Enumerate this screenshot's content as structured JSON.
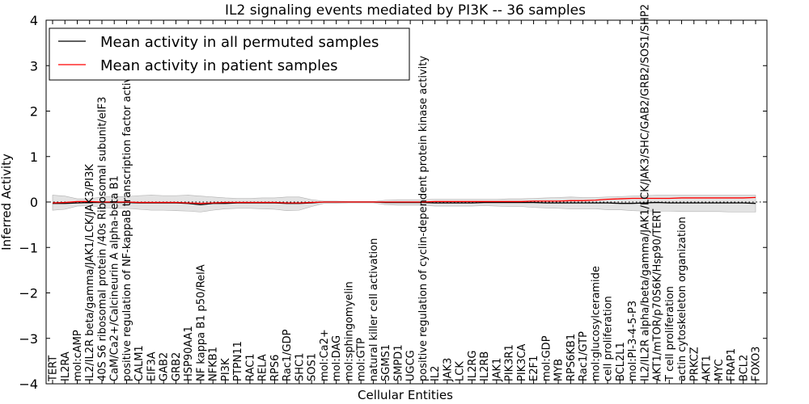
{
  "chart_data": {
    "type": "line",
    "title": "IL2 signaling events mediated by PI3K -- 36 samples",
    "xlabel": "Cellular Entities",
    "ylabel": "Inferred Activity",
    "ylim": [
      -4,
      4
    ],
    "yticks": [
      4,
      3,
      2,
      1,
      0,
      -1,
      -2,
      -3,
      -4
    ],
    "ytick_labels": [
      "4",
      "3",
      "2",
      "1",
      "0",
      "−1",
      "−2",
      "−3",
      "−4"
    ],
    "grid": false,
    "legend_position": "top-left",
    "categories": [
      "TERT",
      "IL2RA",
      "mol:cAMP",
      "IL2/IL2R beta/gamma/JAK1/LCK/JAK3/PI3K",
      "40S S6 ribosomal protein /40s Ribosomal subunit/eIF3",
      "CaM/Ca2+/Calcineurin A alpha-beta B1",
      "positive regulation of NF-kappaB transcription factor activity",
      "CALM1",
      "EIF3A",
      "GAB2",
      "GRB2",
      "HSP90AA1",
      "NF kappa B1 p50/RelA",
      "NFKB1",
      "PI3K",
      "PTPN11",
      "RAC1",
      "RELA",
      "RPS6",
      "Rac1/GDP",
      "SHC1",
      "SOS1",
      "mol:Ca2+",
      "mol:DAG",
      "mol:sphingomyelin",
      "mol:GTP",
      "natural killer cell activation",
      "SGMS1",
      "SMPD1",
      "UGCG",
      "positive regulation of cyclin-dependent protein kinase activity",
      "IL2",
      "JAK3",
      "LCK",
      "IL2RG",
      "IL2RB",
      "JAK1",
      "PIK3R1",
      "PIK3CA",
      "E2F1",
      "mol:GDP",
      "MYB",
      "RPS6KB1",
      "Rac1/GTP",
      "mol:glucosylceramide",
      "cell proliferation",
      "BCL2L1",
      "mol:PI-3-4-5-P3",
      "IL2/IL2R alpha/beta/gamma/JAK1/LCK/JAK3/SHC/GAB2/GRB2/SOS1/SHP2",
      "AKT1/mTOR/p70S6K/Hsp90/TERT",
      "T cell proliferation",
      "actin cytoskeleton organization",
      "PRKCZ",
      "AKT1",
      "MYC",
      "FRAP1",
      "BCL2",
      "FOXO3"
    ],
    "series": [
      {
        "name": "Mean activity in all permuted samples",
        "color": "#000000",
        "values": [
          -0.03,
          -0.03,
          -0.02,
          -0.01,
          -0.01,
          -0.01,
          -0.01,
          -0.02,
          -0.02,
          -0.02,
          -0.02,
          -0.03,
          -0.06,
          -0.03,
          -0.03,
          -0.02,
          -0.02,
          -0.02,
          -0.02,
          -0.03,
          -0.03,
          -0.02,
          0.0,
          0.0,
          0.0,
          0.0,
          0.0,
          -0.01,
          -0.01,
          -0.01,
          -0.01,
          -0.02,
          -0.02,
          -0.02,
          -0.02,
          -0.01,
          -0.01,
          -0.01,
          -0.01,
          -0.01,
          -0.02,
          -0.02,
          -0.02,
          -0.02,
          -0.02,
          -0.02,
          -0.03,
          -0.03,
          -0.02,
          -0.01,
          -0.02,
          -0.02,
          -0.02,
          -0.02,
          -0.02,
          -0.02,
          -0.02,
          -0.03
        ],
        "spread_upper": [
          0.15,
          0.13,
          0.07,
          0.07,
          0.11,
          0.12,
          0.12,
          0.14,
          0.15,
          0.14,
          0.14,
          0.15,
          0.13,
          0.11,
          0.09,
          0.08,
          0.08,
          0.09,
          0.09,
          0.11,
          0.11,
          0.05,
          0.02,
          0.02,
          0.01,
          0.01,
          0.01,
          0.04,
          0.05,
          0.05,
          0.05,
          0.06,
          0.06,
          0.06,
          0.06,
          0.06,
          0.06,
          0.07,
          0.07,
          0.08,
          0.09,
          0.1,
          0.11,
          0.1,
          0.1,
          0.11,
          0.12,
          0.13,
          0.14,
          0.15,
          0.15,
          0.15,
          0.15,
          0.15,
          0.15,
          0.15,
          0.15,
          0.15
        ],
        "spread_lower": [
          -0.18,
          -0.16,
          -0.09,
          -0.08,
          -0.12,
          -0.14,
          -0.14,
          -0.16,
          -0.18,
          -0.18,
          -0.19,
          -0.2,
          -0.22,
          -0.18,
          -0.15,
          -0.14,
          -0.14,
          -0.15,
          -0.16,
          -0.19,
          -0.18,
          -0.1,
          -0.03,
          -0.03,
          -0.02,
          -0.02,
          -0.02,
          -0.06,
          -0.07,
          -0.07,
          -0.07,
          -0.09,
          -0.09,
          -0.09,
          -0.09,
          -0.08,
          -0.09,
          -0.1,
          -0.1,
          -0.12,
          -0.13,
          -0.14,
          -0.15,
          -0.15,
          -0.15,
          -0.17,
          -0.17,
          -0.19,
          -0.2,
          -0.2,
          -0.2,
          -0.21,
          -0.21,
          -0.21,
          -0.21,
          -0.22,
          -0.22,
          -0.22
        ]
      },
      {
        "name": "Mean activity in patient samples",
        "color": "#ff0000",
        "values": [
          -0.02,
          -0.01,
          0.01,
          0.01,
          0.0,
          0.0,
          0.0,
          -0.01,
          -0.01,
          -0.01,
          -0.01,
          -0.02,
          -0.03,
          -0.02,
          -0.01,
          -0.01,
          -0.01,
          -0.01,
          -0.01,
          -0.02,
          -0.02,
          -0.01,
          0.0,
          0.0,
          0.0,
          0.0,
          0.0,
          0.0,
          0.0,
          0.0,
          0.0,
          0.01,
          0.01,
          0.01,
          0.01,
          0.01,
          0.01,
          0.01,
          0.01,
          0.02,
          0.02,
          0.02,
          0.03,
          0.03,
          0.04,
          0.06,
          0.07,
          0.08,
          0.08,
          0.08,
          0.08,
          0.09,
          0.09,
          0.09,
          0.09,
          0.09,
          0.09,
          0.1
        ]
      }
    ]
  }
}
